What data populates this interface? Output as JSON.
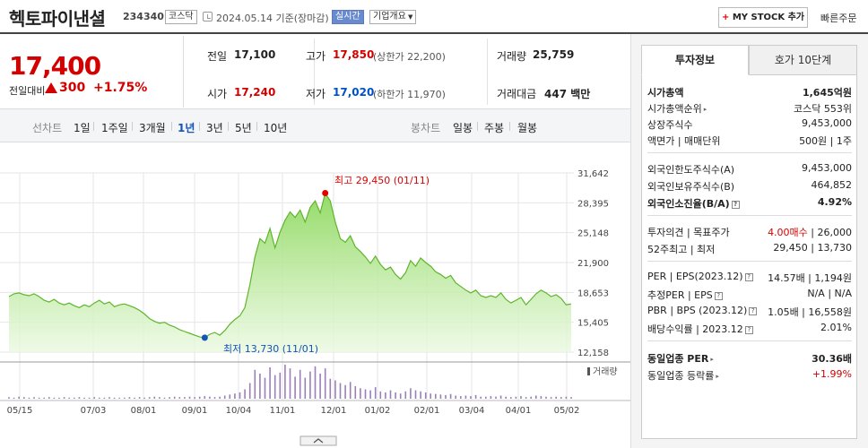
{
  "header": {
    "stock_name": "헥토파이낸셜",
    "stock_code": "234340",
    "market": "코스닥",
    "date_text": "2024.05.14  기준(장마감)",
    "realtime_label": "실시간",
    "company_label": "기업개요",
    "mystock_label": "MY STOCK 추가",
    "quick_order_label": "빠른주문"
  },
  "price": {
    "current": "17,400",
    "change_label": "전일대비",
    "change_value": "300",
    "change_rate": "+1.75%"
  },
  "summary": {
    "prev_close_label": "전일",
    "prev_close": "17,100",
    "high_label": "고가",
    "high": "17,850",
    "upper_limit": "(상한가 22,200)",
    "volume_label": "거래량",
    "volume": "25,759",
    "open_label": "시가",
    "open": "17,240",
    "low_label": "저가",
    "low": "17,020",
    "lower_limit": "(하한가 11,970)",
    "trade_value_label": "거래대금",
    "trade_value": "447 백만"
  },
  "period_bar": {
    "line_chart_label": "선차트",
    "periods": [
      "1일",
      "1주일",
      "3개월",
      "1년",
      "3년",
      "5년",
      "10년"
    ],
    "active_period": "1년",
    "candle_chart_label": "봉차트",
    "candle_periods": [
      "일봉",
      "주봉",
      "월봉"
    ]
  },
  "chart_data": {
    "type": "area",
    "y_ticks": [
      31642,
      28395,
      25148,
      21900,
      18653,
      15405,
      12158
    ],
    "y_tick_labels": [
      "31,642",
      "28,395",
      "25,148",
      "21,900",
      "18,653",
      "15,405",
      "12,158"
    ],
    "x_tick_labels": [
      "05/15",
      "07/03",
      "08/01",
      "09/01",
      "10/04",
      "11/01",
      "12/01",
      "01/02",
      "02/01",
      "03/04",
      "04/01",
      "05/02"
    ],
    "ylim": [
      12158,
      31642
    ],
    "high_annotation": "최고 29,450 (01/11)",
    "low_annotation": "최저 13,730 (11/01)",
    "high_value": 29450,
    "low_value": 13730,
    "volume_label": "거래량",
    "price_values": [
      18200,
      18500,
      18600,
      18400,
      18300,
      18500,
      18200,
      17800,
      17600,
      17900,
      17500,
      17300,
      17500,
      17200,
      17000,
      17300,
      17100,
      17500,
      17800,
      17400,
      17600,
      17100,
      17300,
      17400,
      17200,
      17000,
      16700,
      16300,
      15800,
      15500,
      15300,
      15400,
      15100,
      14900,
      14600,
      14400,
      14200,
      14000,
      13800,
      13730,
      14100,
      14300,
      14000,
      14500,
      15200,
      15700,
      16100,
      17000,
      19500,
      22500,
      24500,
      24000,
      25600,
      23500,
      25200,
      26500,
      27400,
      26800,
      27600,
      26300,
      27900,
      28600,
      27300,
      29450,
      28600,
      26300,
      24500,
      24100,
      24800,
      23600,
      23100,
      22500,
      21800,
      22600,
      21700,
      21100,
      21400,
      20600,
      20100,
      20800,
      22100,
      21500,
      22400,
      21900,
      21500,
      20900,
      20600,
      20200,
      20500,
      19700,
      19300,
      18900,
      18600,
      18900,
      18300,
      18100,
      18300,
      18100,
      18600,
      17900,
      17500,
      17800,
      18100,
      17300,
      17900,
      18500,
      18900,
      18600,
      18200,
      18400,
      18000,
      17300,
      17400
    ],
    "volume_values": [
      3,
      2,
      4,
      3,
      2,
      3,
      2,
      2,
      3,
      2,
      2,
      3,
      2,
      2,
      3,
      2,
      2,
      3,
      2,
      2,
      3,
      2,
      2,
      2,
      3,
      2,
      3,
      2,
      3,
      4,
      3,
      2,
      3,
      4,
      3,
      3,
      4,
      3,
      4,
      5,
      4,
      3,
      4,
      6,
      8,
      10,
      12,
      18,
      30,
      55,
      48,
      40,
      60,
      45,
      50,
      65,
      58,
      42,
      55,
      40,
      52,
      62,
      48,
      58,
      38,
      35,
      30,
      26,
      32,
      24,
      20,
      18,
      16,
      22,
      14,
      12,
      16,
      12,
      10,
      14,
      20,
      16,
      14,
      12,
      10,
      9,
      8,
      7,
      9,
      6,
      5,
      6,
      5,
      7,
      4,
      4,
      5,
      4,
      6,
      4,
      3,
      4,
      5,
      3,
      4,
      6,
      5,
      4,
      3,
      4,
      3,
      4,
      3
    ]
  },
  "right_panel": {
    "tabs": [
      "투자정보",
      "호가 10단계"
    ],
    "market_cap_label": "시가총액",
    "market_cap": "1,645억원",
    "market_cap_rank_label": "시가총액순위",
    "market_cap_rank": "코스닥 553위",
    "shares_label": "상장주식수",
    "shares": "9,453,000",
    "par_label": "액면가 | 매매단위",
    "par": "500원 | 1주",
    "foreign_limit_label": "외국인한도주식수(A)",
    "foreign_limit": "9,453,000",
    "foreign_hold_label": "외국인보유주식수(B)",
    "foreign_hold": "464,852",
    "foreign_rate_label": "외국인소진율(B/A)",
    "foreign_rate": "4.92%",
    "opinion_label": "투자의견 | 목표주가",
    "opinion_value": "4.00매수",
    "target_price": "26,000",
    "w52_label": "52주최고 | 최저",
    "w52": "29,450 | 13,730",
    "per_label": "PER | EPS(2023.12)",
    "per_value": "14.57배 | 1,194원",
    "est_per_label": "추정PER | EPS",
    "est_per_value": "N/A | N/A",
    "pbr_label": "PBR | BPS (2023.12)",
    "pbr_value": "1.05배 | 16,558원",
    "div_label": "배당수익률 | 2023.12",
    "div_value": "2.01%",
    "sector_per_label": "동일업종 PER",
    "sector_per": "30.36배",
    "sector_rate_label": "동일업종 등락률",
    "sector_rate": "+1.99%"
  }
}
